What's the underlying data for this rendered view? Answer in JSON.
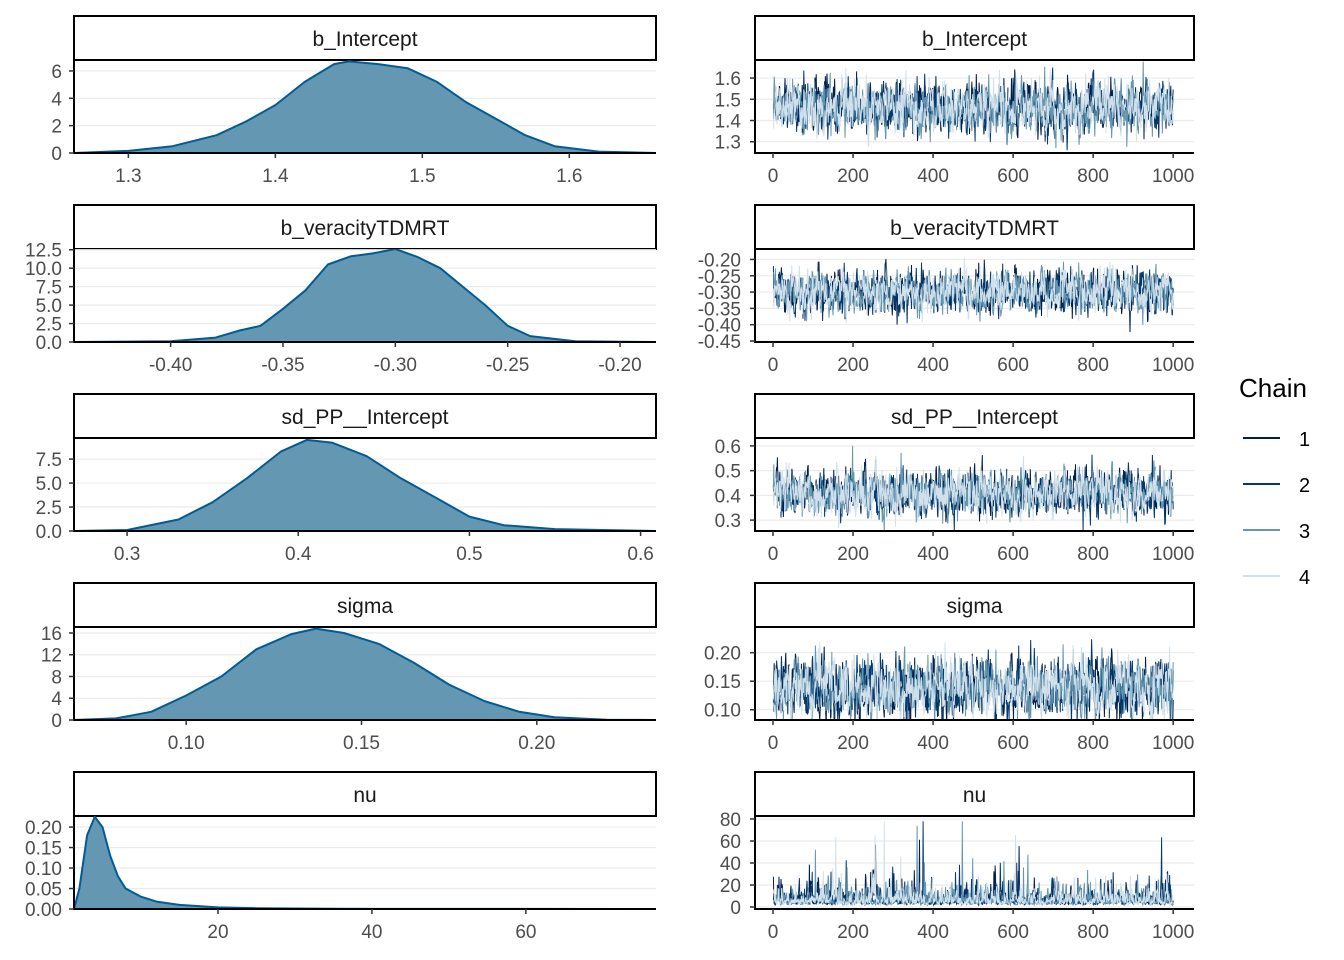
{
  "legend": {
    "title": "Chain",
    "position": "right",
    "entries": [
      {
        "label": "1",
        "color": "#011f4b"
      },
      {
        "label": "2",
        "color": "#03396c"
      },
      {
        "label": "3",
        "color": "#6497b1"
      },
      {
        "label": "4",
        "color": "#d1e1ec"
      }
    ]
  },
  "colors": {
    "density_fill": "#6497b1",
    "density_line": "#005b96",
    "grid": "#ebebeb"
  },
  "chart_data": [
    {
      "type": "area",
      "title": "b_Intercept",
      "xlim": [
        1.263,
        1.659
      ],
      "ylim": [
        0,
        6.8
      ],
      "xticks": [
        "1.3",
        "1.4",
        "1.5",
        "1.6"
      ],
      "xtick_values": [
        1.3,
        1.4,
        1.5,
        1.6
      ],
      "yticks": [
        "0",
        "2",
        "4",
        "6"
      ],
      "ytick_values": [
        0,
        2,
        4,
        6
      ],
      "x": [
        1.263,
        1.3,
        1.33,
        1.36,
        1.38,
        1.4,
        1.42,
        1.44,
        1.45,
        1.47,
        1.49,
        1.51,
        1.53,
        1.55,
        1.57,
        1.59,
        1.62,
        1.659
      ],
      "y": [
        0,
        0.15,
        0.5,
        1.3,
        2.3,
        3.5,
        5.2,
        6.5,
        6.7,
        6.5,
        6.2,
        5.2,
        3.7,
        2.5,
        1.3,
        0.5,
        0.1,
        0
      ]
    },
    {
      "type": "line",
      "title": "b_Intercept",
      "xlim": [
        -45,
        1052
      ],
      "ylim": [
        1.247,
        1.685
      ],
      "xticks": [
        "0",
        "200",
        "400",
        "600",
        "800",
        "1000"
      ],
      "xtick_values": [
        0,
        200,
        400,
        600,
        800,
        1000
      ],
      "yticks": [
        "1.3",
        "1.4",
        "1.5",
        "1.6"
      ],
      "ytick_values": [
        1.3,
        1.4,
        1.5,
        1.6
      ],
      "iterations": 1000,
      "chains": 4,
      "mean": 1.46,
      "sd": 0.06
    },
    {
      "type": "area",
      "title": "b_veracityTDMRT",
      "xlim": [
        -0.443,
        -0.184
      ],
      "ylim": [
        0,
        12.6
      ],
      "xticks": [
        "-0.40",
        "-0.35",
        "-0.30",
        "-0.25",
        "-0.20"
      ],
      "xtick_values": [
        -0.4,
        -0.35,
        -0.3,
        -0.25,
        -0.2
      ],
      "yticks": [
        "0.0",
        "2.5",
        "5.0",
        "7.5",
        "10.0",
        "12.5"
      ],
      "ytick_values": [
        0,
        2.5,
        5,
        7.5,
        10,
        12.5
      ],
      "x": [
        -0.443,
        -0.4,
        -0.38,
        -0.37,
        -0.36,
        -0.35,
        -0.34,
        -0.33,
        -0.32,
        -0.31,
        -0.3,
        -0.29,
        -0.28,
        -0.27,
        -0.26,
        -0.25,
        -0.24,
        -0.22,
        -0.184
      ],
      "y": [
        0,
        0.1,
        0.6,
        1.5,
        2.2,
        4.5,
        7,
        10.5,
        11.6,
        12,
        12.6,
        11.5,
        10,
        7.5,
        5,
        2.2,
        0.8,
        0.1,
        0
      ]
    },
    {
      "type": "line",
      "title": "b_veracityTDMRT",
      "xlim": [
        -45,
        1052
      ],
      "ylim": [
        -0.453,
        -0.168
      ],
      "xticks": [
        "0",
        "200",
        "400",
        "600",
        "800",
        "1000"
      ],
      "xtick_values": [
        0,
        200,
        400,
        600,
        800,
        1000
      ],
      "yticks": [
        "-0.45",
        "-0.40",
        "-0.35",
        "-0.30",
        "-0.25",
        "-0.20"
      ],
      "ytick_values": [
        -0.45,
        -0.4,
        -0.35,
        -0.3,
        -0.25,
        -0.2
      ],
      "iterations": 1000,
      "chains": 4,
      "mean": -0.3,
      "sd": 0.032
    },
    {
      "type": "area",
      "title": "sd_PP__Intercept",
      "xlim": [
        0.269,
        0.609
      ],
      "ylim": [
        0,
        9.7
      ],
      "xticks": [
        "0.3",
        "0.4",
        "0.5",
        "0.6"
      ],
      "xtick_values": [
        0.3,
        0.4,
        0.5,
        0.6
      ],
      "yticks": [
        "0.0",
        "2.5",
        "5.0",
        "7.5"
      ],
      "ytick_values": [
        0,
        2.5,
        5,
        7.5
      ],
      "x": [
        0.269,
        0.3,
        0.33,
        0.35,
        0.37,
        0.39,
        0.405,
        0.42,
        0.44,
        0.46,
        0.48,
        0.5,
        0.52,
        0.55,
        0.609
      ],
      "y": [
        0,
        0.1,
        1.2,
        3,
        5.5,
        8.3,
        9.5,
        9.2,
        7.8,
        5.5,
        3.5,
        1.5,
        0.6,
        0.2,
        0
      ]
    },
    {
      "type": "line",
      "title": "sd_PP__Intercept",
      "xlim": [
        -45,
        1052
      ],
      "ylim": [
        0.256,
        0.632
      ],
      "xticks": [
        "0",
        "200",
        "400",
        "600",
        "800",
        "1000"
      ],
      "xtick_values": [
        0,
        200,
        400,
        600,
        800,
        1000
      ],
      "yticks": [
        "0.3",
        "0.4",
        "0.5",
        "0.6"
      ],
      "ytick_values": [
        0.3,
        0.4,
        0.5,
        0.6
      ],
      "iterations": 1000,
      "chains": 4,
      "mean": 0.41,
      "sd": 0.045
    },
    {
      "type": "area",
      "title": "sigma",
      "xlim": [
        0.068,
        0.234
      ],
      "ylim": [
        0,
        17.1
      ],
      "xticks": [
        "0.10",
        "0.15",
        "0.20"
      ],
      "xtick_values": [
        0.1,
        0.15,
        0.2
      ],
      "yticks": [
        "0",
        "4",
        "8",
        "12",
        "16"
      ],
      "ytick_values": [
        0,
        4,
        8,
        12,
        16
      ],
      "x": [
        0.068,
        0.08,
        0.09,
        0.1,
        0.11,
        0.12,
        0.13,
        0.137,
        0.145,
        0.155,
        0.165,
        0.175,
        0.185,
        0.195,
        0.205,
        0.22,
        0.234
      ],
      "y": [
        0,
        0.3,
        1.5,
        4.5,
        8,
        13,
        15.8,
        16.8,
        16,
        14,
        10.5,
        6.5,
        3.5,
        1.5,
        0.5,
        0.05,
        0
      ]
    },
    {
      "type": "line",
      "title": "sigma",
      "xlim": [
        -45,
        1052
      ],
      "ylim": [
        0.082,
        0.245
      ],
      "xticks": [
        "0",
        "200",
        "400",
        "600",
        "800",
        "1000"
      ],
      "xtick_values": [
        0,
        200,
        400,
        600,
        800,
        1000
      ],
      "yticks": [
        "0.10",
        "0.15",
        "0.20"
      ],
      "ytick_values": [
        0.1,
        0.15,
        0.2
      ],
      "iterations": 1000,
      "chains": 4,
      "mean": 0.14,
      "sd": 0.025
    },
    {
      "type": "area",
      "title": "nu",
      "xlim": [
        1.3,
        76.9
      ],
      "ylim": [
        0,
        0.227
      ],
      "xticks": [
        "20",
        "40",
        "60"
      ],
      "xtick_values": [
        20,
        40,
        60
      ],
      "yticks": [
        "0.00",
        "0.05",
        "0.10",
        "0.15",
        "0.20"
      ],
      "ytick_values": [
        0,
        0.05,
        0.1,
        0.15,
        0.2
      ],
      "x": [
        1.3,
        2,
        3,
        4,
        5,
        6,
        7,
        8,
        10,
        12,
        15,
        20,
        25,
        35,
        76.9
      ],
      "y": [
        0,
        0.05,
        0.18,
        0.225,
        0.2,
        0.13,
        0.08,
        0.05,
        0.03,
        0.018,
        0.01,
        0.004,
        0.002,
        0.0005,
        0
      ]
    },
    {
      "type": "line",
      "title": "nu",
      "xlim": [
        -45,
        1052
      ],
      "ylim": [
        -1.8,
        82.7
      ],
      "xticks": [
        "0",
        "200",
        "400",
        "600",
        "800",
        "1000"
      ],
      "xtick_values": [
        0,
        200,
        400,
        600,
        800,
        1000
      ],
      "yticks": [
        "0",
        "20",
        "40",
        "60",
        "80"
      ],
      "ytick_values": [
        0,
        20,
        40,
        60,
        80
      ],
      "iterations": 1000,
      "chains": 4,
      "median": 6,
      "max": 78,
      "skewed": true
    }
  ]
}
